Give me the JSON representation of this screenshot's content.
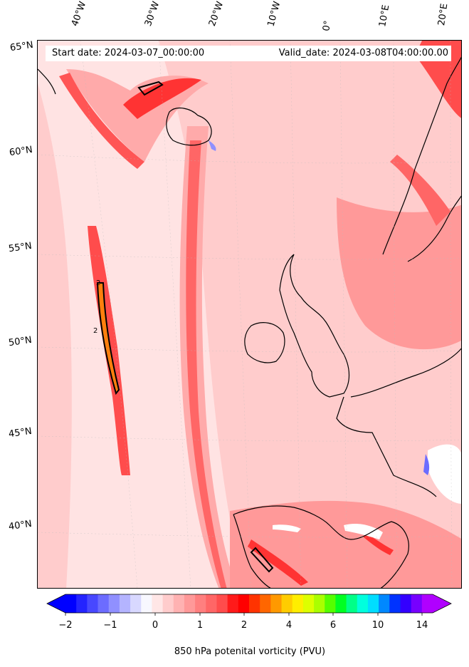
{
  "header": {
    "start_date": "Start date: 2024-03-07_00:00:00",
    "valid_date": "Valid_date: 2024-03-08T04:00:00.00"
  },
  "lon_labels": [
    "40°W",
    "30°W",
    "20°W",
    "10°W",
    "0°",
    "10°E",
    "20°E"
  ],
  "lat_labels": [
    "65°N",
    "60°N",
    "55°N",
    "50°N",
    "45°N",
    "40°N"
  ],
  "contour_label": "2",
  "colorbar": {
    "tick_labels": [
      "−2",
      "−1",
      "0",
      "1",
      "2",
      "4",
      "6",
      "10",
      "14"
    ],
    "caption": "850 hPa potenital vorticity (PVU)",
    "colors": [
      "#0000ff",
      "#2424ff",
      "#4848ff",
      "#6c6cff",
      "#9090ff",
      "#b4b4ff",
      "#d8d8ff",
      "#f8f8ff",
      "#ffe6e6",
      "#ffcccc",
      "#ffb2b2",
      "#ff9999",
      "#ff7f7f",
      "#ff6666",
      "#ff4c4c",
      "#ff1a1a",
      "#ff0000",
      "#ff3300",
      "#ff6600",
      "#ff9900",
      "#ffcc00",
      "#ffee00",
      "#ddff00",
      "#aaff00",
      "#55ff00",
      "#00ff22",
      "#00ff88",
      "#00ffdd",
      "#00ddff",
      "#0088ff",
      "#0033ff",
      "#3300ff",
      "#7700ff",
      "#b000ff"
    ],
    "under_color": "#0000ff",
    "over_color": "#b000ff"
  },
  "palette": {
    "background": "#ffe6e6",
    "light": "#ffcccc",
    "mid": "#ff9999",
    "strong": "#ff4c4c",
    "max": "#ff1a1a",
    "orange": "#ff7f0e",
    "negative": "#9090ff"
  }
}
